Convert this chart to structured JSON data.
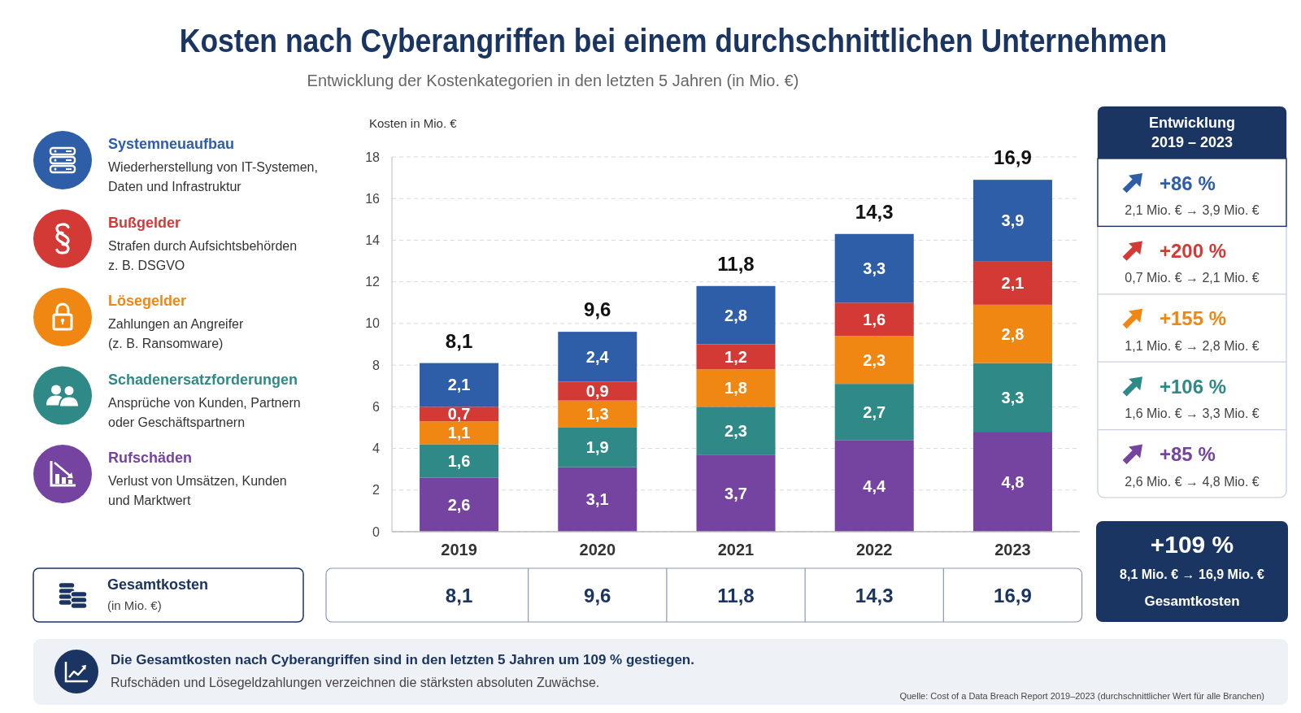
{
  "chart_data": [
    {
      "type": "bar",
      "title": "Kosten nach Cyberangriffen bei einem durchschnittlichen Unternehmen",
      "subtitle": "Entwicklung der Kostenkategorien in den letzten 5 Jahren (in Mio. €)",
      "ylabel": "Kosten in Mio. €",
      "categories": [
        "2019",
        "2020",
        "2021",
        "2022",
        "2023"
      ],
      "stacked": true,
      "series": [
        {
          "name": "Rufschäden",
          "color": "#7444a0",
          "values": [
            2.6,
            3.1,
            3.7,
            4.4,
            4.8
          ],
          "value_labels": [
            "2,6",
            "3,1",
            "3,7",
            "4,4",
            "4,8"
          ]
        },
        {
          "name": "Schadenersatzforderungen",
          "color": "#2f8a87",
          "values": [
            1.6,
            1.9,
            2.3,
            2.7,
            3.3
          ],
          "value_labels": [
            "1,6",
            "1,9",
            "2,3",
            "2,7",
            "3,3"
          ]
        },
        {
          "name": "Lösegelder",
          "color": "#ef8712",
          "values": [
            1.1,
            1.3,
            1.8,
            2.3,
            2.8
          ],
          "value_labels": [
            "1,1",
            "1,3",
            "1,8",
            "2,3",
            "2,8"
          ]
        },
        {
          "name": "Bußgelder",
          "color": "#d33a36",
          "values": [
            0.7,
            0.9,
            1.2,
            1.6,
            2.1
          ],
          "value_labels": [
            "0,7",
            "0,9",
            "1,2",
            "1,6",
            "2,1"
          ]
        },
        {
          "name": "Systemneuaufbau",
          "color": "#2f5ea9",
          "values": [
            2.1,
            2.4,
            2.8,
            3.3,
            3.9
          ],
          "value_labels": [
            "2,1",
            "2,4",
            "2,8",
            "3,3",
            "3,9"
          ]
        }
      ],
      "ylim": [
        0,
        18
      ],
      "yticks": [
        0,
        2,
        4,
        6,
        8,
        10,
        12,
        14,
        16,
        18
      ],
      "grid": "y",
      "legend": "left",
      "totals": [
        "8,1",
        "9,6",
        "11,8",
        "14,3",
        "16,9"
      ],
      "annotations": [
        "Wiederherstellung von IT-Systemen,",
        "Daten und Infrastruktur",
        "Strafen durch Aufsichtsbehörden",
        "z. B. DSGVO",
        "Zahlungen an Angreifer",
        "(z. B. Ransomware)",
        "Ansprüche von Kunden, Partnern",
        "oder Geschäftspartnern",
        "Verlust von Umsätzen, Kunden",
        "und Marktwert",
        "Gesamtkosten",
        "(in Mio. €)",
        "Die Gesamtkosten nach Cyberangriffen sind in den letzten 5 Jahren um 109 % gestiegen.",
        "Rufschäden und Lösegeldzahlungen verzeichnen die stärksten absoluten Zuwächse.",
        "Quelle: Cost of a Data Breach Report 2019–2023 (durchschnittlicher Wert für alle Branchen)"
      ]
    },
    {
      "type": "other",
      "title": "Entwicklung",
      "subtitle": "2019 – 2023",
      "colors": [
        "#2f5ea9",
        "#d33a36",
        "#ef8712",
        "#2f8a87",
        "#7444a0"
      ],
      "annotations": [
        "+86 %",
        "2,1 Mio. € → 3,9 Mio. €",
        "+200 %",
        "0,7 Mio. € → 2,1 Mio. €",
        "+155 %",
        "1,1 Mio. € → 2,8 Mio. €",
        "+106 %",
        "1,6 Mio. € → 3,3 Mio. €",
        "+85 %",
        "2,6 Mio. € → 4,8 Mio. €",
        "+109 %",
        "8,1 Mio. € → 16,9 Mio. €",
        "Gesamtkosten"
      ]
    }
  ]
}
